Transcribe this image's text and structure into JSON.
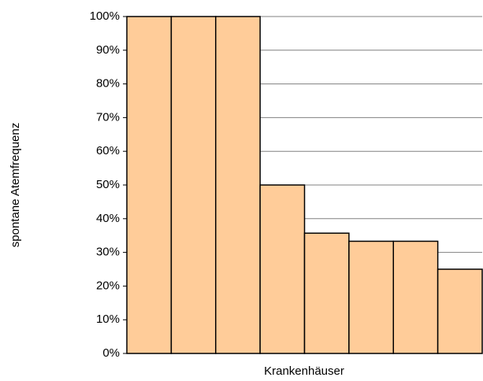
{
  "chart_data": {
    "type": "bar",
    "x_label": "Krankenhäuser",
    "y_label": "spontane Atemfrequenz",
    "categories": [
      null,
      null,
      null,
      null,
      null,
      null,
      null,
      null
    ],
    "values": [
      100,
      100,
      100,
      50,
      35.7,
      33.3,
      33.3,
      25
    ],
    "color": "#ffcc99",
    "ylim": [
      0,
      100
    ],
    "yticks": [
      {
        "value": 0,
        "label": "0%"
      },
      {
        "value": 10,
        "label": "10%"
      },
      {
        "value": 20,
        "label": "20%"
      },
      {
        "value": 30,
        "label": "30%"
      },
      {
        "value": 40,
        "label": "40%"
      },
      {
        "value": 50,
        "label": "50%"
      },
      {
        "value": 60,
        "label": "60%"
      },
      {
        "value": 70,
        "label": "70%"
      },
      {
        "value": 80,
        "label": "80%"
      },
      {
        "value": 90,
        "label": "90%"
      },
      {
        "value": 100,
        "label": "100%"
      }
    ],
    "grid": true
  }
}
